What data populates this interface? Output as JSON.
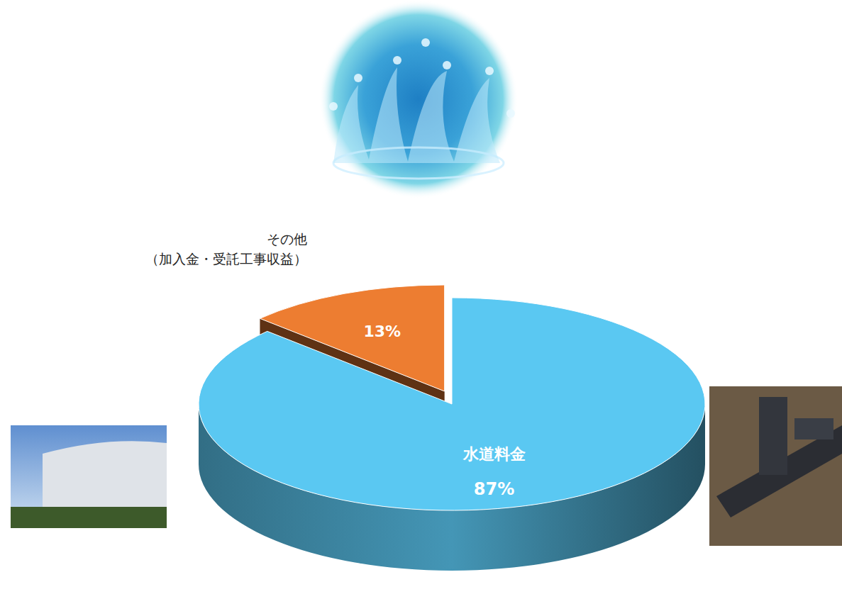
{
  "chart_data": {
    "type": "pie",
    "categories": [
      "水道料金",
      "その他\n（加入金・受託工事収益）"
    ],
    "values": [
      87,
      13
    ],
    "value_labels": [
      "87%",
      "13%"
    ],
    "colors": [
      "#5ac8f2",
      "#ed7d31"
    ],
    "data_labels": true
  }
}
